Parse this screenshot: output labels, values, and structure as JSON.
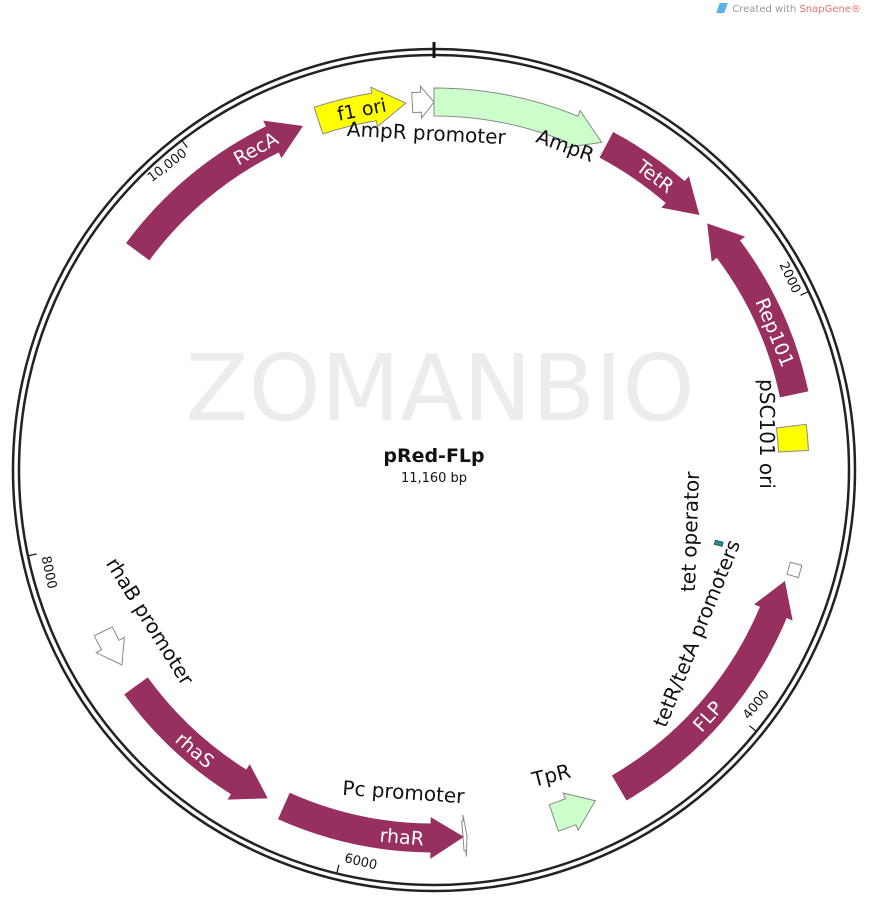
{
  "credit": {
    "prefix": "Created with ",
    "brand": "SnapGene®"
  },
  "watermark": "ZOMANBIO",
  "plasmid": {
    "name": "pRed-FLp",
    "length_label": "11,160 bp",
    "length_bp": 11160
  },
  "ticks": [
    {
      "bp": 2000,
      "label": "2000"
    },
    {
      "bp": 4000,
      "label": "4000"
    },
    {
      "bp": 6000,
      "label": "6000"
    },
    {
      "bp": 8000,
      "label": "8000"
    },
    {
      "bp": 10000,
      "label": "10,000"
    }
  ],
  "colors": {
    "cds": "#98305f",
    "resistance": "#ccffcc",
    "origin": "#ffff00",
    "promoter": "#ffffff",
    "operator": "#2f8a96"
  },
  "features": [
    {
      "name": "f1 ori",
      "start": 10593,
      "end": 11024,
      "strand": 1,
      "type": "origin",
      "label_inside": true
    },
    {
      "name": "AmpR promoter",
      "start": 11055,
      "end": 11160,
      "strand": 1,
      "type": "promoter"
    },
    {
      "name": "AmpR",
      "start": 0,
      "end": 840,
      "strand": 1,
      "type": "resistance"
    },
    {
      "name": "TetR",
      "start": 868,
      "end": 1426,
      "strand": 1,
      "type": "cds",
      "label_inside": true
    },
    {
      "name": "Rep101",
      "start": 1490,
      "end": 2420,
      "strand": -1,
      "type": "cds",
      "label_inside": true
    },
    {
      "name": "pSC101 ori",
      "start": 2573,
      "end": 2697,
      "strand": 0,
      "type": "origin"
    },
    {
      "name": "tet operator",
      "start": 3225,
      "end": 3250,
      "strand": 0,
      "type": "operator"
    },
    {
      "name": "tetR/tetA promoters",
      "start": 3240,
      "end": 3300,
      "strand": 0,
      "type": "promoter"
    },
    {
      "name": "FLP",
      "start": 3339,
      "end": 4641,
      "strand": -1,
      "type": "cds",
      "label_inside": true
    },
    {
      "name": "TpR",
      "start": 4774,
      "end": 4991,
      "strand": -1,
      "type": "resistance"
    },
    {
      "name": "Pc promoter",
      "start": 5420,
      "end": 5440,
      "strand": -1,
      "type": "promoter"
    },
    {
      "name": "rhaR",
      "start": 5440,
      "end": 6324,
      "strand": -1,
      "type": "cds",
      "label_inside": true
    },
    {
      "name": "rhaS",
      "start": 6417,
      "end": 7254,
      "strand": -1,
      "type": "cds",
      "label_inside": true
    },
    {
      "name": "rhaB promoter",
      "start": 7378,
      "end": 7564,
      "strand": -1,
      "type": "promoter"
    },
    {
      "name": "RecA",
      "start": 9500,
      "end": 10509,
      "strand": 1,
      "type": "cds",
      "label_inside": true
    }
  ]
}
